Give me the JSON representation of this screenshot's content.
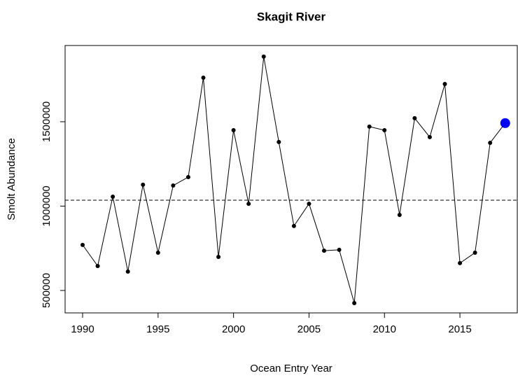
{
  "chart_data": {
    "type": "line",
    "title": "Skagit River",
    "x_label": "Ocean Entry Year",
    "y_label": "Smolt Abundance",
    "x": [
      1990,
      1991,
      1992,
      1993,
      1994,
      1995,
      1996,
      1997,
      1998,
      1999,
      2000,
      2001,
      2002,
      2003,
      2004,
      2005,
      2006,
      2007,
      2008,
      2009,
      2010,
      2011,
      2012,
      2013,
      2014,
      2015,
      2016,
      2017,
      2018
    ],
    "values": [
      770000,
      645000,
      1056000,
      612000,
      1127000,
      724000,
      1122000,
      1172000,
      1761000,
      699000,
      1450000,
      1014000,
      1886000,
      1380000,
      882000,
      1014000,
      736000,
      741000,
      425000,
      1471000,
      1450000,
      948000,
      1521000,
      1409000,
      1724000,
      662000,
      724000,
      1375000,
      1492000
    ],
    "color": "#000000",
    "highlight_last": true,
    "highlight_color": "#0000ff",
    "reference_line": 1035000,
    "xlim": [
      1988.84,
      2018.8
    ],
    "ylim": [
      367000,
      1952000
    ],
    "xticks": [
      1990,
      1995,
      2000,
      2005,
      2010,
      2015
    ],
    "yticks": [
      500000,
      1000000,
      1500000
    ]
  }
}
